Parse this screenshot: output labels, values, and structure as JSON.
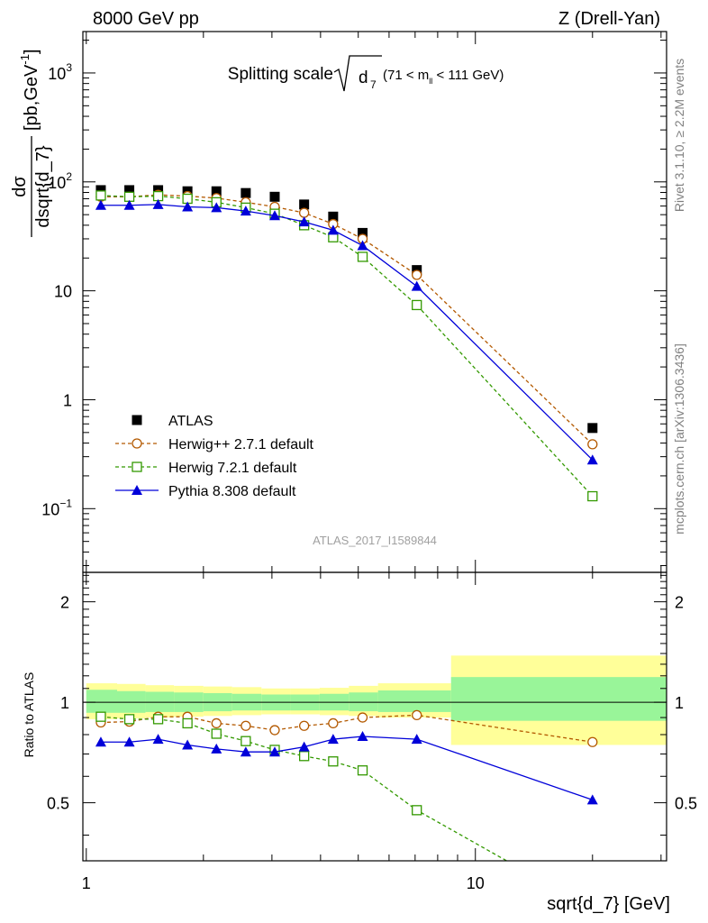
{
  "header": {
    "left": "8000 GeV pp",
    "right": "Z (Drell-Yan)"
  },
  "side_labels": {
    "rivet": "Rivet 3.1.10, ≥ 2.2M events",
    "mcplots": "mcplots.cern.ch [arXiv:1306.3436]"
  },
  "plot_title": {
    "main": "Splitting scale",
    "sqrt_symbol": "√",
    "var": "d",
    "var_sub": "7",
    "range_pre": "(71 < m",
    "range_sub": "ll",
    "range_post": " < 111 GeV)"
  },
  "watermark": "ATLAS_2017_I1589844",
  "ylabel_top": {
    "num": "dσ",
    "den": "dsqrt{d_7}",
    "unit_pre": "[pb,GeV",
    "unit_sup": "-1",
    "unit_post": "]"
  },
  "ylabel_bottom": "Ratio to ATLAS",
  "xlabel": "sqrt{d_7} [GeV]",
  "colors": {
    "atlas": "#000000",
    "herwigpp": "#b35900",
    "herwig7": "#339900",
    "pythia": "#0000d9",
    "band_inner": "#99f599",
    "band_outer": "#ffff99"
  },
  "chart_data": [
    {
      "type": "line",
      "panel": "main",
      "xscale": "log",
      "yscale": "log",
      "xlim": [
        0.98,
        31
      ],
      "ylim": [
        0.026,
        2400
      ],
      "xticks": [
        {
          "v": 1,
          "label": "1"
        },
        {
          "v": 10,
          "label": "10"
        }
      ],
      "yticks": [
        {
          "v": 0.1,
          "base": "10",
          "exp": "−1"
        },
        {
          "v": 1,
          "base": "1",
          "exp": ""
        },
        {
          "v": 10,
          "base": "10",
          "exp": ""
        },
        {
          "v": 100,
          "base": "10",
          "exp": "2"
        },
        {
          "v": 1000,
          "base": "10",
          "exp": "3"
        }
      ],
      "x": [
        1.09,
        1.29,
        1.53,
        1.82,
        2.16,
        2.57,
        3.05,
        3.63,
        4.31,
        5.13,
        7.07,
        20.0
      ],
      "series": [
        {
          "name": "ATLAS",
          "style": "data",
          "values": [
            84,
            84,
            84,
            82,
            82,
            79,
            73,
            62,
            48,
            34,
            15.5,
            0.55
          ]
        },
        {
          "name": "Herwig++ 2.7.1 default",
          "style": "dashed-circle",
          "values": [
            73,
            73,
            76,
            74,
            71,
            65,
            59,
            52,
            41,
            30,
            14,
            0.39
          ]
        },
        {
          "name": "Herwig 7.2.1 default",
          "style": "dashed-square",
          "values": [
            75,
            73,
            74,
            70,
            65,
            58,
            51,
            40,
            31,
            20.5,
            7.4,
            0.13
          ]
        },
        {
          "name": "Pythia 8.308 default",
          "style": "solid-triangle",
          "values": [
            61,
            61,
            62,
            59,
            58,
            54,
            49,
            43,
            36,
            26,
            11,
            0.28
          ]
        }
      ]
    },
    {
      "type": "line",
      "panel": "ratio",
      "xscale": "log",
      "yscale": "log",
      "xlim": [
        0.98,
        31
      ],
      "ylim": [
        0.335,
        2.45
      ],
      "yticks": [
        {
          "v": 0.5,
          "label": "0.5"
        },
        {
          "v": 1,
          "label": "1"
        },
        {
          "v": 2,
          "label": "2"
        }
      ],
      "x": [
        1.09,
        1.29,
        1.53,
        1.82,
        2.16,
        2.57,
        3.05,
        3.63,
        4.31,
        5.13,
        7.07,
        20.0
      ],
      "series": [
        {
          "name": "Herwig++ 2.7.1 default",
          "style": "dashed-circle",
          "values": [
            0.87,
            0.875,
            0.905,
            0.905,
            0.865,
            0.85,
            0.825,
            0.85,
            0.865,
            0.9,
            0.915,
            0.76
          ]
        },
        {
          "name": "Herwig 7.2.1 default",
          "style": "dashed-square",
          "values": [
            0.905,
            0.89,
            0.89,
            0.865,
            0.805,
            0.765,
            0.72,
            0.69,
            0.665,
            0.625,
            0.475,
            0.24
          ]
        },
        {
          "name": "Pythia 8.308 default",
          "style": "solid-triangle",
          "values": [
            0.76,
            0.76,
            0.775,
            0.745,
            0.725,
            0.71,
            0.71,
            0.735,
            0.775,
            0.79,
            0.775,
            0.51
          ]
        }
      ],
      "uncertainty_bands": [
        {
          "x0": 1.0,
          "x1": 1.2,
          "inner": [
            0.93,
            1.09
          ],
          "outer": [
            0.89,
            1.14
          ]
        },
        {
          "x0": 1.2,
          "x1": 1.42,
          "inner": [
            0.93,
            1.08
          ],
          "outer": [
            0.895,
            1.135
          ]
        },
        {
          "x0": 1.42,
          "x1": 1.68,
          "inner": [
            0.935,
            1.075
          ],
          "outer": [
            0.9,
            1.125
          ]
        },
        {
          "x0": 1.68,
          "x1": 2.0,
          "inner": [
            0.935,
            1.07
          ],
          "outer": [
            0.905,
            1.12
          ]
        },
        {
          "x0": 2.0,
          "x1": 2.37,
          "inner": [
            0.94,
            1.065
          ],
          "outer": [
            0.91,
            1.115
          ]
        },
        {
          "x0": 2.37,
          "x1": 2.82,
          "inner": [
            0.945,
            1.06
          ],
          "outer": [
            0.915,
            1.11
          ]
        },
        {
          "x0": 2.82,
          "x1": 3.35,
          "inner": [
            0.945,
            1.055
          ],
          "outer": [
            0.92,
            1.1
          ]
        },
        {
          "x0": 3.35,
          "x1": 3.98,
          "inner": [
            0.945,
            1.055
          ],
          "outer": [
            0.92,
            1.1
          ]
        },
        {
          "x0": 3.98,
          "x1": 4.73,
          "inner": [
            0.945,
            1.06
          ],
          "outer": [
            0.915,
            1.105
          ]
        },
        {
          "x0": 4.73,
          "x1": 5.62,
          "inner": [
            0.94,
            1.07
          ],
          "outer": [
            0.91,
            1.12
          ]
        },
        {
          "x0": 5.62,
          "x1": 8.66,
          "inner": [
            0.935,
            1.085
          ],
          "outer": [
            0.9,
            1.14
          ]
        },
        {
          "x0": 8.66,
          "x1": 31,
          "inner": [
            0.88,
            1.19
          ],
          "outer": [
            0.745,
            1.38
          ]
        }
      ]
    }
  ]
}
